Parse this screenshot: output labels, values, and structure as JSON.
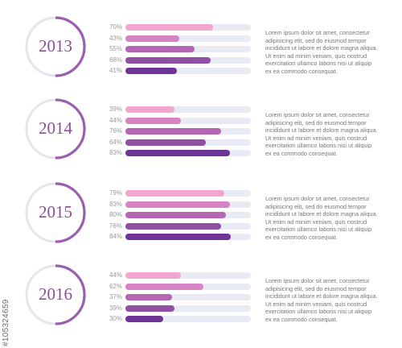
{
  "chart_data": {
    "type": "bar",
    "groups": [
      {
        "year": "2013",
        "ring": 0.5,
        "values": [
          70,
          43,
          55,
          68,
          41
        ]
      },
      {
        "year": "2014",
        "ring": 0.5,
        "values": [
          39,
          44,
          76,
          64,
          83
        ]
      },
      {
        "year": "2015",
        "ring": 0.5,
        "values": [
          79,
          83,
          80,
          76,
          84
        ]
      },
      {
        "year": "2016",
        "ring": 0.5,
        "values": [
          44,
          62,
          37,
          39,
          30
        ]
      }
    ],
    "value_unit": "%",
    "xlim": [
      0,
      100
    ],
    "bar_colors": [
      "#f2a6cf",
      "#d583c2",
      "#b567b4",
      "#8f4fa3",
      "#6e3596"
    ],
    "track_color": "#e9ebf4",
    "ring_color": "#9b5fb0",
    "ring_track_color": "#e4e6ef",
    "paragraph_lines": [
      "Lorem ipsum dolor sit amet, consectetur",
      "adipisicing elit, sed do eiusmod tempor",
      "incididunt ut labore et dolore magna aliqua.",
      "Ut enim ad minim veniam, quis nostrud",
      "exercitation ullamco laboris nisi ut aliquip",
      "ex ea commodo consequat."
    ]
  },
  "stock_id": "#105324659"
}
